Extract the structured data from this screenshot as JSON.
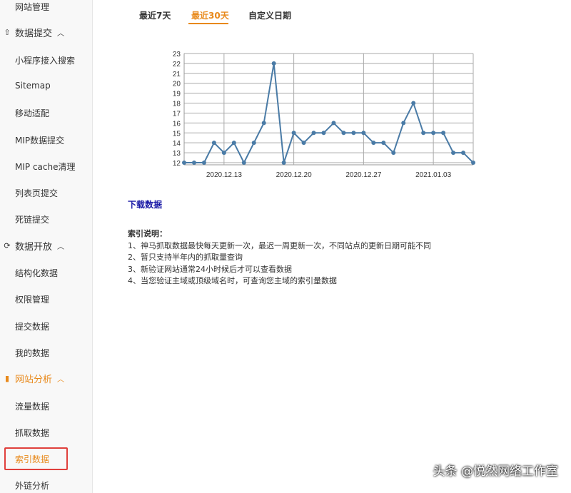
{
  "sidebar": {
    "items": [
      {
        "label": "网站管理",
        "type": "item"
      },
      {
        "label": "数据提交",
        "type": "group",
        "icon": "upload-icon"
      },
      {
        "label": "小程序接入搜索",
        "type": "item"
      },
      {
        "label": "Sitemap",
        "type": "item"
      },
      {
        "label": "移动适配",
        "type": "item"
      },
      {
        "label": "MIP数据提交",
        "type": "item"
      },
      {
        "label": "MIP cache清理",
        "type": "item"
      },
      {
        "label": "列表页提交",
        "type": "item"
      },
      {
        "label": "死链提交",
        "type": "item"
      },
      {
        "label": "数据开放",
        "type": "group",
        "icon": "link-icon"
      },
      {
        "label": "结构化数据",
        "type": "item"
      },
      {
        "label": "权限管理",
        "type": "item"
      },
      {
        "label": "提交数据",
        "type": "item"
      },
      {
        "label": "我的数据",
        "type": "item"
      },
      {
        "label": "网站分析",
        "type": "group",
        "icon": "bar-chart-icon",
        "active": true
      },
      {
        "label": "流量数据",
        "type": "item"
      },
      {
        "label": "抓取数据",
        "type": "item"
      },
      {
        "label": "索引数据",
        "type": "item",
        "active": true
      },
      {
        "label": "外链分析",
        "type": "item"
      }
    ]
  },
  "tabs": [
    {
      "label": "最近7天"
    },
    {
      "label": "最近30天",
      "active": true
    },
    {
      "label": "自定义日期"
    }
  ],
  "colors": {
    "accent": "#e8891b",
    "line": "#4a7ba6",
    "highlight_box": "#e0403c",
    "link": "#1a1aa6"
  },
  "chart_data": {
    "type": "line",
    "x": [
      "2020.12.09",
      "2020.12.10",
      "2020.12.11",
      "2020.12.12",
      "2020.12.13",
      "2020.12.14",
      "2020.12.15",
      "2020.12.16",
      "2020.12.17",
      "2020.12.18",
      "2020.12.19",
      "2020.12.20",
      "2020.12.21",
      "2020.12.22",
      "2020.12.23",
      "2020.12.24",
      "2020.12.25",
      "2020.12.26",
      "2020.12.27",
      "2020.12.28",
      "2020.12.29",
      "2020.12.30",
      "2020.12.31",
      "2021.01.01",
      "2021.01.02",
      "2021.01.03",
      "2021.01.04",
      "2021.01.05",
      "2021.01.06",
      "2021.01.07"
    ],
    "values": [
      12,
      12,
      12,
      14,
      13,
      14,
      12,
      14,
      16,
      22,
      12,
      15,
      14,
      15,
      15,
      16,
      15,
      15,
      15,
      14,
      14,
      13,
      16,
      18,
      15,
      15,
      15,
      13,
      13,
      12
    ],
    "x_tick_labels": [
      "2020.12.13",
      "2020.12.20",
      "2020.12.27",
      "2021.01.03"
    ],
    "y_tick_labels": [
      "12",
      "13",
      "14",
      "15",
      "16",
      "17",
      "18",
      "19",
      "20",
      "21",
      "22",
      "23"
    ],
    "ylim": [
      12,
      23
    ],
    "grid": true
  },
  "download_label": "下载数据",
  "notes": {
    "title": "索引说明：",
    "lines": [
      "1、神马抓取数据最快每天更新一次，最迟一周更新一次，不同站点的更新日期可能不同",
      "2、暂只支持半年内的抓取量查询",
      "3、新验证网站通常24小时候后才可以查看数据",
      "4、当您验证主域或顶级域名时，可查询您主域的索引量数据"
    ]
  },
  "watermark": "头条 @悦然网络工作室"
}
